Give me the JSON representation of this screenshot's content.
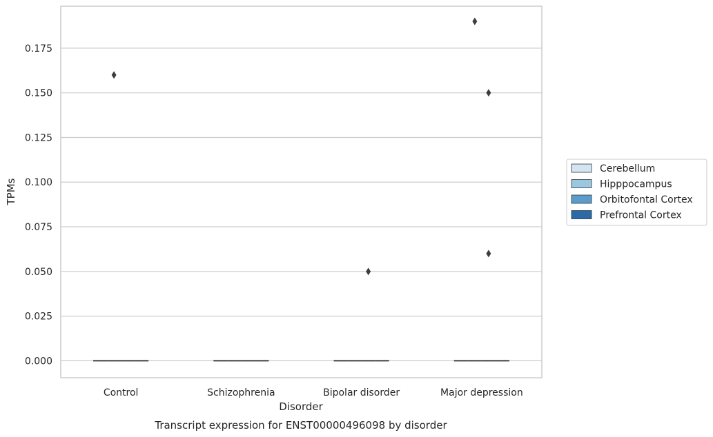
{
  "chart_data": {
    "type": "boxplot",
    "caption": "Transcript expression for ENST00000496098 by disorder",
    "xlabel": "Disorder",
    "ylabel": "TPMs",
    "categories": [
      "Control",
      "Schizophrenia",
      "Bipolar disorder",
      "Major depression"
    ],
    "ylim": [
      -0.0095,
      0.1985
    ],
    "yticks": [
      0.0,
      0.025,
      0.05,
      0.075,
      0.1,
      0.125,
      0.15,
      0.175
    ],
    "ytick_labels": [
      "0.000",
      "0.025",
      "0.050",
      "0.075",
      "0.100",
      "0.125",
      "0.150",
      "0.175"
    ],
    "grid": true,
    "legend_position": "right",
    "series": [
      {
        "name": "Cerebellum",
        "color": "#d3e4f3",
        "median": [
          0,
          0,
          0,
          0
        ],
        "outliers": [
          [],
          [],
          [],
          []
        ]
      },
      {
        "name": "Hipppocampus",
        "color": "#9cc7e0",
        "median": [
          0,
          0,
          0,
          0
        ],
        "outliers": [
          [
            0.16
          ],
          [],
          [],
          [
            0.19
          ]
        ]
      },
      {
        "name": "Orbitofontal Cortex",
        "color": "#5a9dcc",
        "median": [
          0,
          0,
          0,
          0
        ],
        "outliers": [
          [],
          [],
          [
            0.05
          ],
          [
            0.15,
            0.06
          ]
        ]
      },
      {
        "name": "Prefrontal Cortex",
        "color": "#2a6aaa",
        "median": [
          0,
          0,
          0,
          0
        ],
        "outliers": [
          [],
          [],
          [],
          []
        ]
      }
    ]
  }
}
